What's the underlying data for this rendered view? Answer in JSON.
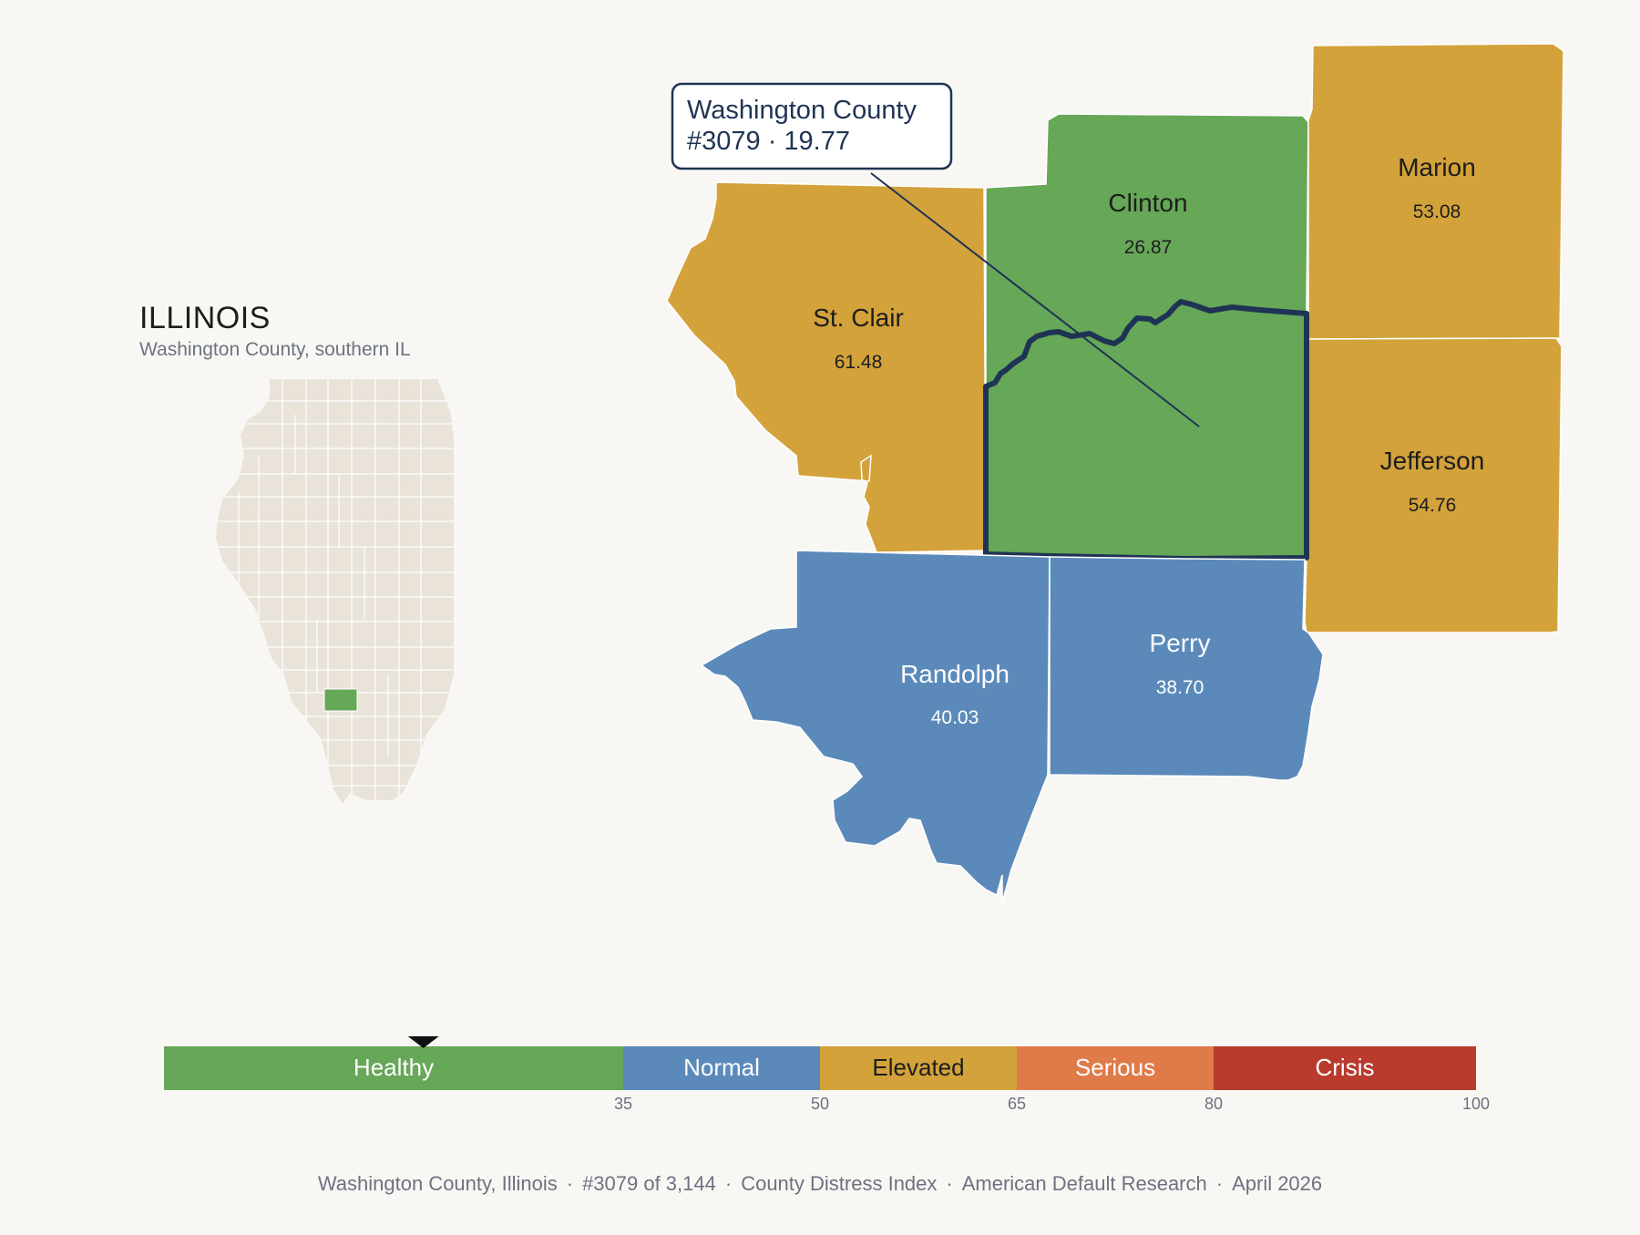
{
  "inset": {
    "title": "ILLINOIS",
    "subtitle": "Washington County, southern IL"
  },
  "callout": {
    "line1": "Washington County",
    "line2": "#3079 · 19.77"
  },
  "counties": [
    {
      "id": "st-clair",
      "name": "St. Clair",
      "value": "61.48",
      "category": "Elevated"
    },
    {
      "id": "clinton",
      "name": "Clinton",
      "value": "26.87",
      "category": "Healthy"
    },
    {
      "id": "marion",
      "name": "Marion",
      "value": "53.08",
      "category": "Elevated"
    },
    {
      "id": "jefferson",
      "name": "Jefferson",
      "value": "54.76",
      "category": "Elevated"
    },
    {
      "id": "randolph",
      "name": "Randolph",
      "value": "40.03",
      "category": "Normal"
    },
    {
      "id": "perry",
      "name": "Perry",
      "value": "38.70",
      "category": "Normal"
    },
    {
      "id": "washington",
      "name": "Washington County",
      "value": "19.77",
      "category": "Healthy"
    }
  ],
  "legend": {
    "bins": [
      {
        "label": "Healthy",
        "from": 0,
        "to": 35,
        "color": "#66a758"
      },
      {
        "label": "Normal",
        "from": 35,
        "to": 50,
        "color": "#5b8aba"
      },
      {
        "label": "Elevated",
        "from": 50,
        "to": 65,
        "color": "#d3a23a"
      },
      {
        "label": "Serious",
        "from": 65,
        "to": 80,
        "color": "#df7a49"
      },
      {
        "label": "Crisis",
        "from": 80,
        "to": 100,
        "color": "#b83b2d"
      }
    ],
    "ticks": [
      "35",
      "50",
      "65",
      "80",
      "100"
    ],
    "marker_value": 19.77
  },
  "colors": {
    "healthy": "#66a758",
    "normal": "#5b8aba",
    "elevated": "#d3a23a",
    "serious": "#df7a49",
    "crisis": "#b83b2d",
    "highlight_outline": "#1f3454",
    "inset_county": "#e9e3d9"
  },
  "footer": {
    "county": "Washington County, Illinois",
    "rank": "#3079 of 3,144",
    "index": "County Distress Index",
    "source": "American Default Research",
    "date": "April 2026"
  }
}
